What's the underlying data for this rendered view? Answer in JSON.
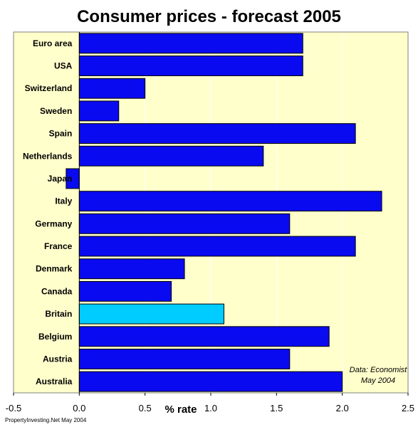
{
  "chart_data": {
    "type": "bar",
    "orientation": "horizontal",
    "title": "Consumer prices - forecast 2005",
    "xlabel": "% rate",
    "ylabel": "",
    "xlim": [
      -0.5,
      2.5
    ],
    "xticks": [
      "-0.5",
      "0.0",
      "0.5",
      "1.0",
      "1.5",
      "2.0",
      "2.5"
    ],
    "categories": [
      "Euro area",
      "USA",
      "Switzerland",
      "Sweden",
      "Spain",
      "Netherlands",
      "Japan",
      "Italy",
      "Germany",
      "France",
      "Denmark",
      "Canada",
      "Britain",
      "Belgium",
      "Austria",
      "Australia"
    ],
    "values": [
      1.7,
      1.7,
      0.5,
      0.3,
      2.1,
      1.4,
      -0.1,
      2.3,
      1.6,
      2.1,
      0.8,
      0.7,
      1.1,
      1.9,
      1.6,
      2.0
    ],
    "highlight": "Britain",
    "grid": true,
    "colors": {
      "bar": "#0a0af0",
      "highlight_bar": "#00ccff",
      "plot_background": "#ffffcc",
      "gridline": "#ffffff"
    },
    "annotation": [
      "Data: Economist",
      "May 2004"
    ],
    "footer": "PropertyInvesting.Net May 2004"
  }
}
